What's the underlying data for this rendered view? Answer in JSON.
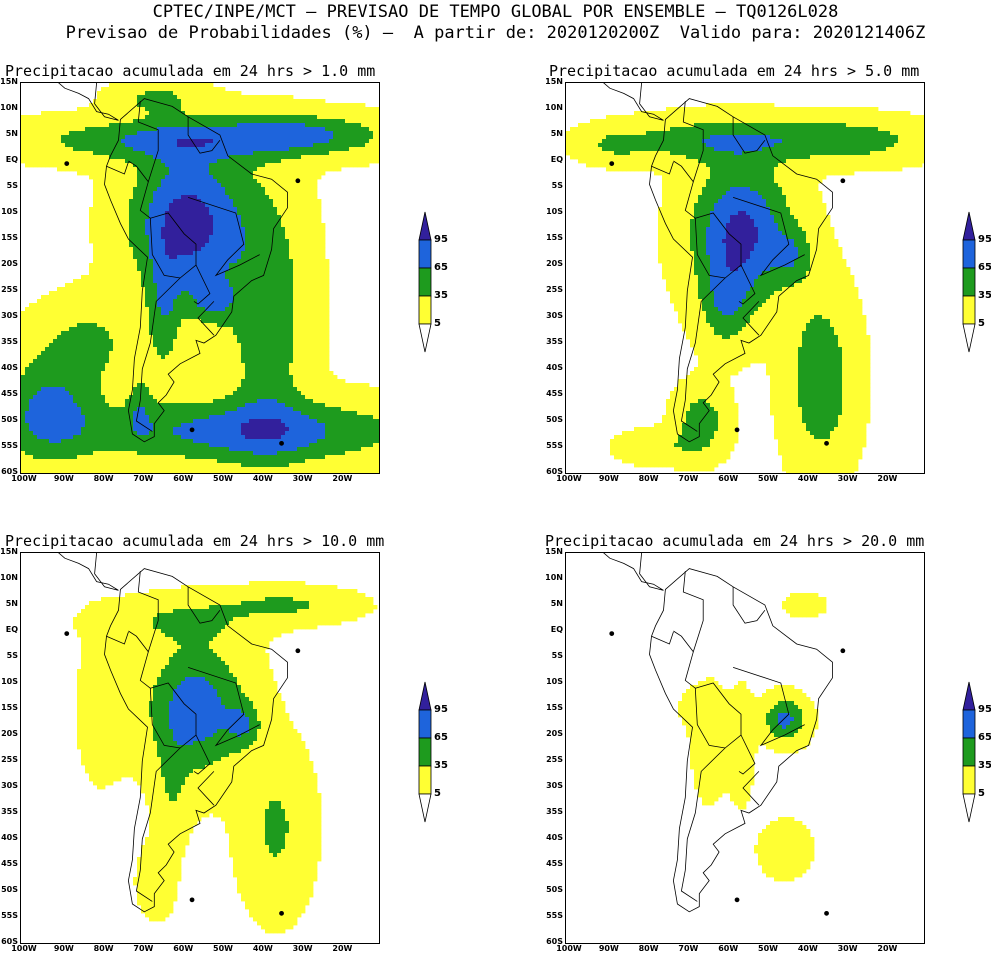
{
  "header": {
    "line1": "CPTEC/INPE/MCT – PREVISAO DE TEMPO GLOBAL POR ENSEMBLE – TQ0126L028",
    "line2": "Previsao de Probabilidades (%) –  A partir de: 2020120200Z  Valido para: 2020121406Z"
  },
  "colors": {
    "p5": "#ffff33",
    "p35": "#1e9b1e",
    "p65": "#1e64dc",
    "p95": "#32209c",
    "coast": "#000000"
  },
  "axes": {
    "lat_labels": [
      "15N",
      "10N",
      "5N",
      "EQ",
      "5S",
      "10S",
      "15S",
      "20S",
      "25S",
      "30S",
      "35S",
      "40S",
      "45S",
      "50S",
      "55S",
      "60S"
    ],
    "lon_labels": [
      "100W",
      "90W",
      "80W",
      "70W",
      "60W",
      "50W",
      "40W",
      "30W",
      "20W"
    ]
  },
  "legend": {
    "labels": [
      "95",
      "65",
      "35",
      "5"
    ]
  },
  "panels": [
    {
      "title": "Precipitacao acumulada em 24 hrs > 1.0 mm"
    },
    {
      "title": "Precipitacao acumulada em 24 hrs > 5.0 mm"
    },
    {
      "title": "Precipitacao acumulada em 24 hrs > 10.0 mm"
    },
    {
      "title": "Precipitacao acumulada em 24 hrs > 20.0 mm"
    }
  ]
}
